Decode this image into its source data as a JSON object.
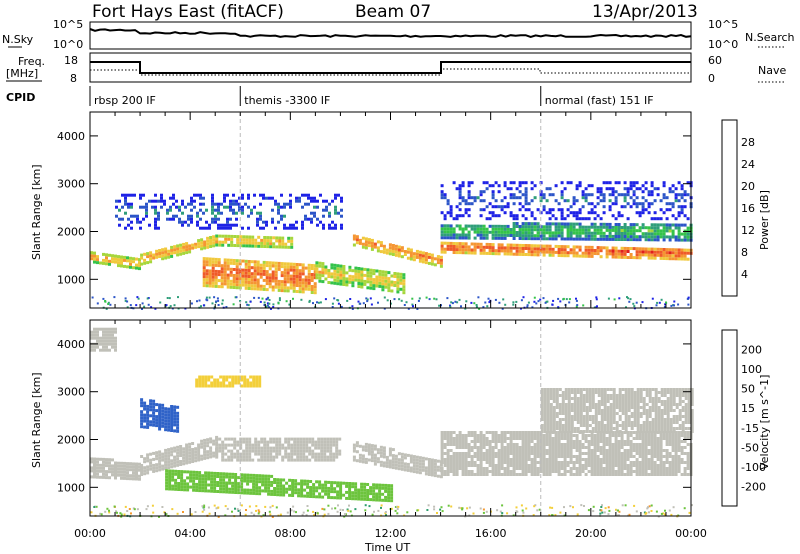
{
  "header": {
    "station": "Fort Hays East (fitACF)",
    "beam": "Beam 07",
    "date": "13/Apr/2013"
  },
  "sky_panel": {
    "left_label": "N.Sky",
    "right_label": "N.Search",
    "left_ticks": [
      "10^5",
      "10^0"
    ],
    "right_ticks": [
      "10^5",
      "10^0"
    ]
  },
  "freq_panel": {
    "left_label_1": "Freq.",
    "left_label_2": "[MHz]",
    "right_label": "Nave",
    "left_ticks": [
      "18",
      "8"
    ],
    "right_ticks": [
      "60",
      "0"
    ]
  },
  "cpid": {
    "label": "CPID",
    "segments": [
      {
        "name": "rbsp 200 IF",
        "start_h": 0,
        "end_h": 6
      },
      {
        "name": "themis -3300 IF",
        "start_h": 6,
        "end_h": 18
      },
      {
        "name": "normal (fast) 151 IF",
        "start_h": 18,
        "end_h": 24
      }
    ]
  },
  "x_axis": {
    "label": "Time UT",
    "ticks": [
      "00:00",
      "04:00",
      "08:00",
      "12:00",
      "16:00",
      "20:00",
      "00:00"
    ]
  },
  "colors": {
    "power": [
      "#1e22e6",
      "#2c55c8",
      "#2f9e7a",
      "#34c34a",
      "#a6d63c",
      "#f0c83c",
      "#f59632",
      "#ef5a28",
      "#e01e1e"
    ],
    "velocity": [
      "#e11f1f",
      "#f05a28",
      "#f59a30",
      "#f3cf3a",
      "#c0c0b8",
      "#6cc43c",
      "#2f9e6e",
      "#2f62c8",
      "#1c24c8"
    ]
  },
  "chart_data": [
    {
      "type": "heatmap",
      "name": "power",
      "ylabel": "Slant Range [km]",
      "yticks": [
        "1000",
        "2000",
        "3000",
        "4000"
      ],
      "ylim": [
        400,
        4500
      ],
      "xlim_hours": [
        0,
        24
      ],
      "colorbar_label": "Power [dB]",
      "colorbar_ticks": [
        "4",
        "8",
        "12",
        "16",
        "20",
        "24",
        "28"
      ],
      "colorbar_range": [
        0,
        32
      ],
      "bands": [
        {
          "t0": 0,
          "t1": 2,
          "r0": 1400,
          "r1": 1600,
          "r0e": 1250,
          "r1e": 1450,
          "val": 22
        },
        {
          "t0": 2,
          "t1": 5,
          "r0": 1350,
          "r1": 1550,
          "r0e": 1750,
          "r1e": 1950,
          "val": 23
        },
        {
          "t0": 5,
          "t1": 8,
          "r0": 1750,
          "r1": 1950,
          "r0e": 1700,
          "r1e": 1900,
          "val": 22
        },
        {
          "t0": 4.5,
          "t1": 9,
          "r0": 900,
          "r1": 1500,
          "r0e": 750,
          "r1e": 1350,
          "val": 26
        },
        {
          "t0": 9,
          "t1": 12.5,
          "r0": 1000,
          "r1": 1400,
          "r0e": 750,
          "r1e": 1150,
          "val": 20
        },
        {
          "t0": 10.5,
          "t1": 14,
          "r0": 1750,
          "r1": 2000,
          "r0e": 1300,
          "r1e": 1550,
          "val": 24
        },
        {
          "t0": 14,
          "t1": 24,
          "r0": 1600,
          "r1": 1800,
          "r0e": 1450,
          "r1e": 1700,
          "val": 27
        },
        {
          "t0": 14,
          "t1": 24,
          "r0": 1900,
          "r1": 2200,
          "r0e": 1850,
          "r1e": 2200,
          "val": 13
        },
        {
          "t0": 1,
          "t1": 10,
          "r0": 2100,
          "r1": 2800,
          "r0e": 2100,
          "r1e": 2800,
          "val": 7
        },
        {
          "t0": 14,
          "t1": 24,
          "r0": 2300,
          "r1": 3100,
          "r0e": 2300,
          "r1e": 3100,
          "val": 6
        }
      ]
    },
    {
      "type": "heatmap",
      "name": "velocity",
      "ylabel": "Slant Range [km]",
      "yticks": [
        "1000",
        "2000",
        "3000",
        "4000"
      ],
      "ylim": [
        400,
        4500
      ],
      "xlim_hours": [
        0,
        24
      ],
      "colorbar_label": "Velocity [m s^-1]",
      "colorbar_ticks": [
        "200",
        "100",
        "50",
        "15",
        "-15",
        "-50",
        "-100",
        "-200"
      ],
      "colorbar_range": [
        -250,
        250
      ],
      "bands": [
        {
          "t0": 0,
          "t1": 2,
          "r0": 1250,
          "r1": 1650,
          "r0e": 1200,
          "r1e": 1550,
          "val": 0
        },
        {
          "t0": 2,
          "t1": 5,
          "r0": 1300,
          "r1": 1700,
          "r0e": 1700,
          "r1e": 2100,
          "val": 0
        },
        {
          "t0": 5,
          "t1": 10,
          "r0": 1600,
          "r1": 2100,
          "r0e": 1600,
          "r1e": 2100,
          "val": 0
        },
        {
          "t0": 3,
          "t1": 12,
          "r0": 1000,
          "r1": 1400,
          "r0e": 750,
          "r1e": 1100,
          "val": 40
        },
        {
          "t0": 10.5,
          "t1": 14,
          "r0": 1600,
          "r1": 2000,
          "r0e": 1250,
          "r1e": 1600,
          "val": 0
        },
        {
          "t0": 14,
          "t1": 24,
          "r0": 1300,
          "r1": 2200,
          "r0e": 1300,
          "r1e": 2200,
          "val": 0
        },
        {
          "t0": 2,
          "t1": 3.5,
          "r0": 2300,
          "r1": 2900,
          "r0e": 2200,
          "r1e": 2700,
          "val": 150
        },
        {
          "t0": 4.2,
          "t1": 6.8,
          "r0": 3150,
          "r1": 3350,
          "r0e": 3150,
          "r1e": 3350,
          "val": -70
        },
        {
          "t0": 0,
          "t1": 1,
          "r0": 3900,
          "r1": 4400,
          "r0e": 3900,
          "r1e": 4400,
          "val": 0
        },
        {
          "t0": 18,
          "t1": 24,
          "r0": 2200,
          "r1": 3100,
          "r0e": 2200,
          "r1e": 3100,
          "val": 0
        }
      ]
    }
  ]
}
